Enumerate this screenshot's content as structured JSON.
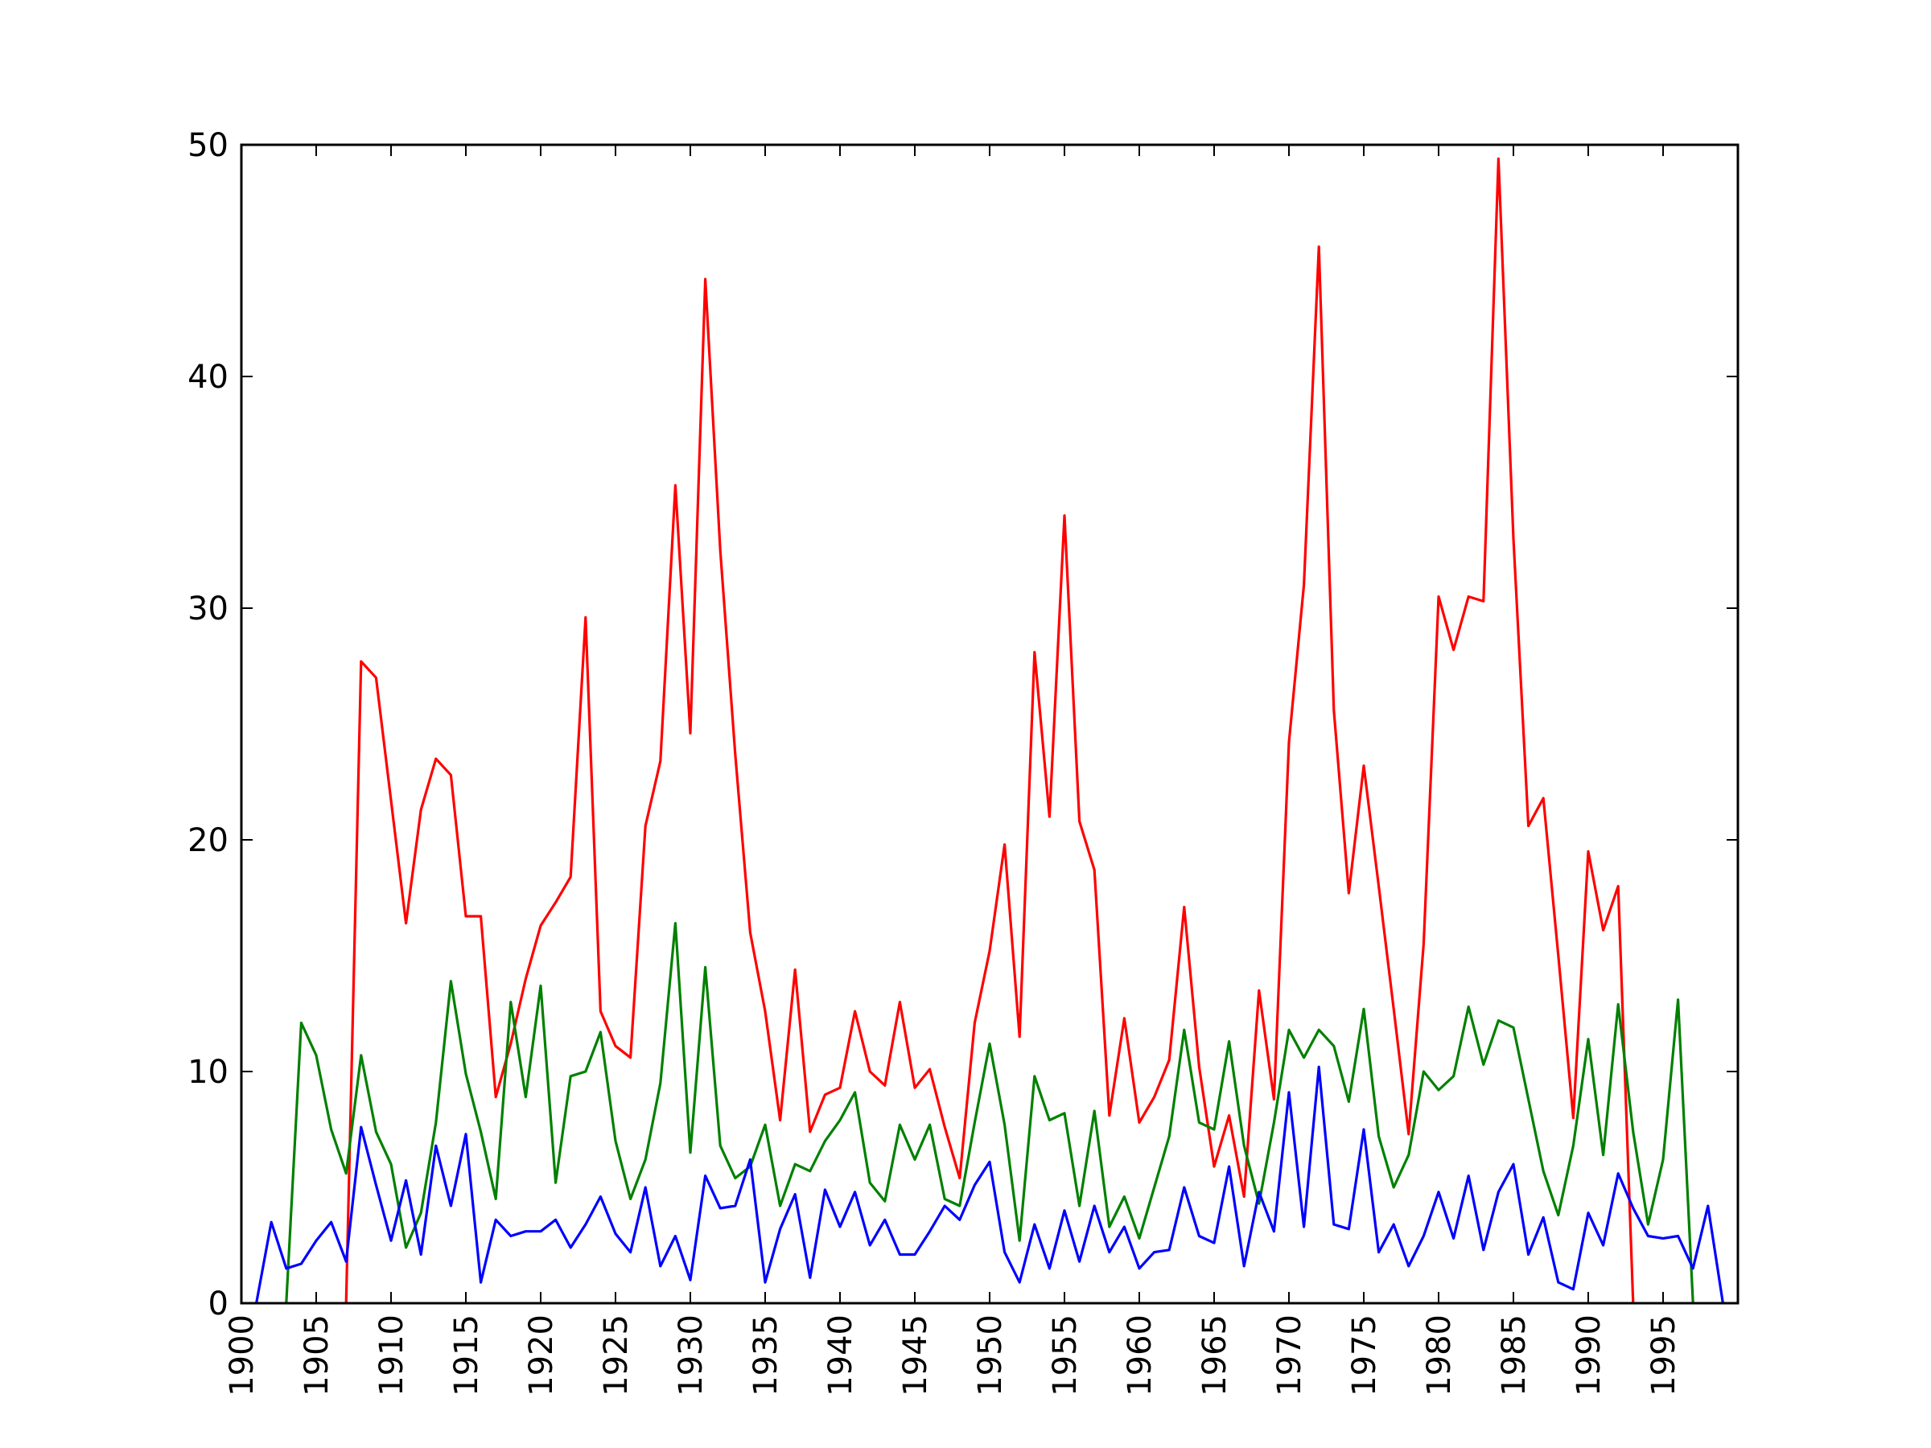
{
  "chart_data": {
    "type": "line",
    "title": "",
    "xlabel": "",
    "ylabel": "",
    "xlim": [
      1900,
      2000
    ],
    "ylim": [
      0,
      50
    ],
    "xticks": [
      1900,
      1905,
      1910,
      1915,
      1920,
      1925,
      1930,
      1935,
      1940,
      1945,
      1950,
      1955,
      1960,
      1965,
      1970,
      1975,
      1980,
      1985,
      1990,
      1995
    ],
    "xtick_labels": [
      "1900",
      "1905",
      "1910",
      "1915",
      "1920",
      "1925",
      "1930",
      "1935",
      "1940",
      "1945",
      "1950",
      "1955",
      "1960",
      "1965",
      "1970",
      "1975",
      "1980",
      "1985",
      "1990",
      "1995"
    ],
    "yticks": [
      0,
      10,
      20,
      30,
      40,
      50
    ],
    "ytick_labels": [
      "0",
      "10",
      "20",
      "30",
      "40",
      "50"
    ],
    "grid": false,
    "legend": "none",
    "series": [
      {
        "color": "#ff0000",
        "x": [
          1907,
          1908,
          1909,
          1910,
          1911,
          1912,
          1913,
          1914,
          1915,
          1916,
          1917,
          1918,
          1919,
          1920,
          1921,
          1922,
          1923,
          1924,
          1925,
          1926,
          1927,
          1928,
          1929,
          1930,
          1931,
          1932,
          1933,
          1934,
          1935,
          1936,
          1937,
          1938,
          1939,
          1940,
          1941,
          1942,
          1943,
          1944,
          1945,
          1946,
          1947,
          1948,
          1949,
          1950,
          1951,
          1952,
          1953,
          1954,
          1955,
          1956,
          1957,
          1958,
          1959,
          1960,
          1961,
          1962,
          1963,
          1964,
          1965,
          1966,
          1967,
          1968,
          1969,
          1970,
          1971,
          1972,
          1973,
          1974,
          1975,
          1976,
          1977,
          1978,
          1979,
          1980,
          1981,
          1982,
          1983,
          1984,
          1985,
          1986,
          1987,
          1988,
          1989,
          1990,
          1991,
          1992,
          1993
        ],
        "values": [
          0,
          27.7,
          27,
          21.7,
          16.4,
          21.3,
          23.5,
          22.8,
          16.7,
          16.7,
          8.9,
          11.2,
          14,
          16.3,
          17.3,
          18.4,
          29.6,
          12.6,
          11.1,
          10.6,
          20.6,
          23.4,
          35.3,
          24.6,
          44.2,
          32.5,
          23.7,
          16,
          12.6,
          7.9,
          14.4,
          7.4,
          9,
          9.3,
          12.6,
          10,
          9.4,
          13,
          9.3,
          10.1,
          7.6,
          5.4,
          12.1,
          15.2,
          19.8,
          11.5,
          28.1,
          21,
          34,
          20.8,
          18.7,
          8.1,
          12.3,
          7.8,
          8.9,
          10.5,
          17.1,
          10.2,
          5.9,
          8.1,
          4.6,
          13.5,
          8.8,
          24.2,
          31,
          45.6,
          25.6,
          17.7,
          23.2,
          18,
          12.7,
          7.3,
          15.5,
          30.5,
          28.2,
          30.5,
          30.3,
          49.4,
          33,
          20.6,
          21.8,
          15,
          8,
          19.5,
          16.1,
          18,
          0
        ]
      },
      {
        "color": "#008000",
        "x": [
          1903,
          1904,
          1905,
          1906,
          1907,
          1908,
          1909,
          1910,
          1911,
          1912,
          1913,
          1914,
          1915,
          1916,
          1917,
          1918,
          1919,
          1920,
          1921,
          1922,
          1923,
          1924,
          1925,
          1926,
          1927,
          1928,
          1929,
          1930,
          1931,
          1932,
          1933,
          1934,
          1935,
          1936,
          1937,
          1938,
          1939,
          1940,
          1941,
          1942,
          1943,
          1944,
          1945,
          1946,
          1947,
          1948,
          1949,
          1950,
          1951,
          1952,
          1953,
          1954,
          1955,
          1956,
          1957,
          1958,
          1959,
          1960,
          1961,
          1962,
          1963,
          1964,
          1965,
          1966,
          1967,
          1968,
          1969,
          1970,
          1971,
          1972,
          1973,
          1974,
          1975,
          1976,
          1977,
          1978,
          1979,
          1980,
          1981,
          1982,
          1983,
          1984,
          1985,
          1986,
          1987,
          1988,
          1989,
          1990,
          1991,
          1992,
          1993,
          1994,
          1995,
          1996,
          1997
        ],
        "values": [
          0,
          12.1,
          10.7,
          7.5,
          5.6,
          10.7,
          7.4,
          6,
          2.4,
          3.9,
          7.8,
          13.9,
          9.9,
          7.4,
          4.5,
          13,
          8.9,
          13.7,
          5.2,
          9.8,
          10,
          11.7,
          7,
          4.5,
          6.2,
          9.5,
          16.4,
          6.5,
          14.5,
          6.8,
          5.4,
          5.9,
          7.7,
          4.2,
          6,
          5.7,
          7,
          7.9,
          9.1,
          5.2,
          4.4,
          7.7,
          6.2,
          7.7,
          4.5,
          4.2,
          7.8,
          11.2,
          7.7,
          2.7,
          9.8,
          7.9,
          8.2,
          4.2,
          8.3,
          3.3,
          4.6,
          2.8,
          5,
          7.2,
          11.8,
          7.8,
          7.5,
          11.3,
          6.8,
          4.3,
          7.8,
          11.8,
          10.6,
          11.8,
          11.1,
          8.7,
          12.7,
          7.2,
          5,
          6.4,
          10,
          9.2,
          9.8,
          12.8,
          10.3,
          12.2,
          11.9,
          8.8,
          5.7,
          3.8,
          6.8,
          11.4,
          6.4,
          12.9,
          7.4,
          3.4,
          6.2,
          13.1,
          0
        ]
      },
      {
        "color": "#0000ff",
        "x": [
          1901,
          1902,
          1903,
          1904,
          1905,
          1906,
          1907,
          1908,
          1909,
          1910,
          1911,
          1912,
          1913,
          1914,
          1915,
          1916,
          1917,
          1918,
          1919,
          1920,
          1921,
          1922,
          1923,
          1924,
          1925,
          1926,
          1927,
          1928,
          1929,
          1930,
          1931,
          1932,
          1933,
          1934,
          1935,
          1936,
          1937,
          1938,
          1939,
          1940,
          1941,
          1942,
          1943,
          1944,
          1945,
          1946,
          1947,
          1948,
          1949,
          1950,
          1951,
          1952,
          1953,
          1954,
          1955,
          1956,
          1957,
          1958,
          1959,
          1960,
          1961,
          1962,
          1963,
          1964,
          1965,
          1966,
          1967,
          1968,
          1969,
          1970,
          1971,
          1972,
          1973,
          1974,
          1975,
          1976,
          1977,
          1978,
          1979,
          1980,
          1981,
          1982,
          1983,
          1984,
          1985,
          1986,
          1987,
          1988,
          1989,
          1990,
          1991,
          1992,
          1993,
          1994,
          1995,
          1996,
          1997,
          1998,
          1999
        ],
        "values": [
          0,
          3.5,
          1.5,
          1.7,
          2.7,
          3.5,
          1.8,
          7.6,
          5.1,
          2.7,
          5.3,
          2.1,
          6.8,
          4.2,
          7.3,
          0.9,
          3.6,
          2.9,
          3.1,
          3.1,
          3.6,
          2.4,
          3.4,
          4.6,
          3,
          2.2,
          5,
          1.6,
          2.9,
          1,
          5.5,
          4.1,
          4.2,
          6.2,
          0.9,
          3.2,
          4.7,
          1.1,
          4.9,
          3.3,
          4.8,
          2.5,
          3.6,
          2.1,
          2.1,
          3.1,
          4.2,
          3.6,
          5.1,
          6.1,
          2.2,
          0.9,
          3.4,
          1.5,
          4,
          1.8,
          4.2,
          2.2,
          3.3,
          1.5,
          2.2,
          2.3,
          5,
          2.9,
          2.6,
          5.9,
          1.6,
          4.8,
          3.1,
          9.1,
          3.3,
          10.2,
          3.4,
          3.2,
          7.5,
          2.2,
          3.4,
          1.6,
          2.9,
          4.8,
          2.8,
          5.5,
          2.3,
          4.8,
          6,
          2.1,
          3.7,
          0.9,
          0.6,
          3.9,
          2.5,
          5.6,
          4.1,
          2.9,
          2.8,
          2.9,
          1.5,
          4.2,
          0
        ]
      }
    ]
  }
}
